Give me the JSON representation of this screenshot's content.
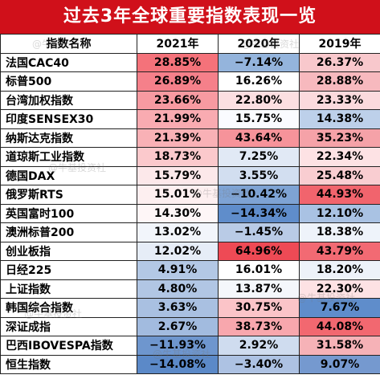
{
  "title": "过去3年全球重要指数表现一览",
  "watermark": "@牛基投资社",
  "columns": [
    "指数名称",
    "2021年",
    "2020年",
    "2019年"
  ],
  "rows": [
    {
      "name": "法国CAC40",
      "values": [
        "28.85%",
        "−7.14%",
        "26.37%"
      ],
      "colors": [
        "#f4727a",
        "#94b4dc",
        "#f8c8cc"
      ]
    },
    {
      "name": "标普500",
      "values": [
        "26.89%",
        "16.26%",
        "28.88%"
      ],
      "colors": [
        "#f5808a",
        "#ffffff",
        "#f7b9be"
      ]
    },
    {
      "name": "台湾加权指数",
      "values": [
        "23.66%",
        "22.80%",
        "23.33%"
      ],
      "colors": [
        "#f79aa1",
        "#fcdfe1",
        "#fbdadd"
      ]
    },
    {
      "name": "印度SENSEX30",
      "values": [
        "21.99%",
        "15.75%",
        "14.38%"
      ],
      "colors": [
        "#f9abb1",
        "#fafbff",
        "#bdd0ea"
      ]
    },
    {
      "name": "纳斯达克指数",
      "values": [
        "21.39%",
        "43.64%",
        "35.23%"
      ],
      "colors": [
        "#f9b1b6",
        "#f6939a",
        "#f5a2a8"
      ]
    },
    {
      "name": "道琼斯工业指数",
      "values": [
        "18.73%",
        "7.25%",
        "22.34%"
      ],
      "colors": [
        "#fbc9cc",
        "#e1e9f5",
        "#fde2e4"
      ]
    },
    {
      "name": "德国DAX",
      "values": [
        "15.79%",
        "3.55%",
        "25.48%"
      ],
      "colors": [
        "#fce8ea",
        "#d2def0",
        "#f9cdd1"
      ]
    },
    {
      "name": "俄罗斯RTS",
      "values": [
        "15.01%",
        "−10.42%",
        "44.93%"
      ],
      "colors": [
        "#fdeff0",
        "#7ea3d4",
        "#f1646d"
      ]
    },
    {
      "name": "英国富时100",
      "values": [
        "14.30%",
        "−14.34%",
        "12.10%"
      ],
      "colors": [
        "#fef6f7",
        "#5f8dcb",
        "#a9c2e3"
      ]
    },
    {
      "name": "澳洲标普200",
      "values": [
        "13.02%",
        "−1.45%",
        "18.38%"
      ],
      "colors": [
        "#f2f5fb",
        "#b9cbe6",
        "#eef3fa"
      ]
    },
    {
      "name": "创业板指",
      "values": [
        "12.02%",
        "64.96%",
        "43.79%"
      ],
      "colors": [
        "#e6edf7",
        "#ee4a55",
        "#f26a73"
      ]
    },
    {
      "name": "日经225",
      "values": [
        "4.91%",
        "16.01%",
        "18.20%"
      ],
      "colors": [
        "#b3c8e5",
        "#ffffff",
        "#edf2f9"
      ]
    },
    {
      "name": "上证指数",
      "values": [
        "4.80%",
        "13.87%",
        "22.30%"
      ],
      "colors": [
        "#b1c6e4",
        "#f4f7fb",
        "#fde2e4"
      ]
    },
    {
      "name": "韩国综合指数",
      "values": [
        "3.63%",
        "30.75%",
        "7.67%"
      ],
      "colors": [
        "#a9c0e1",
        "#fbc4c8",
        "#5f8dcb"
      ]
    },
    {
      "name": "深证成指",
      "values": [
        "2.67%",
        "38.73%",
        "44.08%"
      ],
      "colors": [
        "#a2bbdf",
        "#f8a7ad",
        "#f26870"
      ]
    },
    {
      "name": "巴西IBOVESPA指数",
      "values": [
        "−11.93%",
        "2.92%",
        "31.58%"
      ],
      "colors": [
        "#6e96ce",
        "#cfdcef",
        "#f6b2b7"
      ]
    },
    {
      "name": "恒生指数",
      "values": [
        "−14.08%",
        "−3.40%",
        "9.07%"
      ],
      "colors": [
        "#5b89c8",
        "#adc2e3",
        "#7599cf"
      ]
    }
  ]
}
